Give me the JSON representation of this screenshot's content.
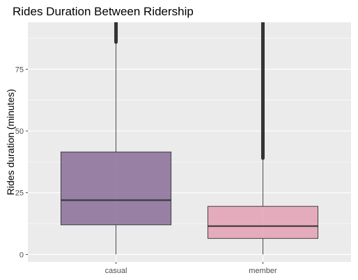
{
  "chart_data": {
    "type": "boxplot",
    "title": "Rides Duration Between Ridership",
    "xlabel": "",
    "ylabel": "Rides duration (minutes)",
    "ylim": [
      -3,
      94
    ],
    "yticks": [
      0,
      25,
      50,
      75
    ],
    "ytick_labels": [
      "0",
      "25",
      "50",
      "75"
    ],
    "grid": true,
    "background": "#ebebeb",
    "categories": [
      "casual",
      "member"
    ],
    "boxes": [
      {
        "name": "casual",
        "whisker_low": 0,
        "q1": 12,
        "median": 22,
        "q3": 41.5,
        "whisker_high": 86,
        "outliers_from": 86,
        "outliers_to": 94,
        "fill": "#7b5c8c"
      },
      {
        "name": "member",
        "whisker_low": 0,
        "q1": 6.5,
        "median": 11.5,
        "q3": 19.5,
        "whisker_high": 39,
        "outliers_from": 39,
        "outliers_to": 94,
        "fill": "#e195ac"
      }
    ]
  }
}
